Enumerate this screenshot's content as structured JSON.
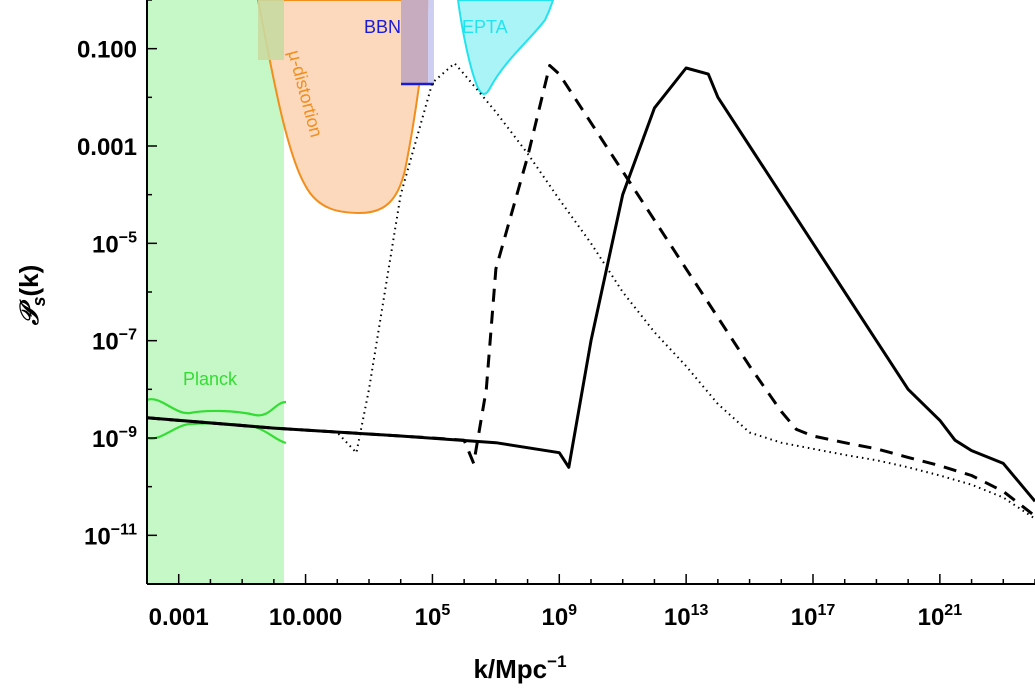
{
  "chart_data": {
    "type": "line",
    "xlabel": "k/Mpc",
    "xlabel_sup": "−1",
    "ylabel": "𝒫",
    "ylabel_sub": "s",
    "ylabel_suffix": "(k)",
    "x_scale": "log",
    "y_scale": "log",
    "xlim": [
      0.0001,
      1e+24
    ],
    "ylim": [
      1e-12,
      1
    ],
    "grid": false,
    "x_ticks": [
      {
        "value": 0.001,
        "base": "0.001",
        "sup": ""
      },
      {
        "value": 10,
        "base": "10.000",
        "sup": ""
      },
      {
        "value": 100000.0,
        "base": "10",
        "sup": "5"
      },
      {
        "value": 1000000000.0,
        "base": "10",
        "sup": "9"
      },
      {
        "value": 10000000000000.0,
        "base": "10",
        "sup": "13"
      },
      {
        "value": 1e+17,
        "base": "10",
        "sup": "17"
      },
      {
        "value": 1e+21,
        "base": "10",
        "sup": "21"
      }
    ],
    "y_ticks": [
      {
        "value": 0.1,
        "base": "0.100",
        "sup": ""
      },
      {
        "value": 0.001,
        "base": "0.001",
        "sup": ""
      },
      {
        "value": 1e-05,
        "base": "10",
        "sup": "−5"
      },
      {
        "value": 1e-07,
        "base": "10",
        "sup": "−7"
      },
      {
        "value": 1e-09,
        "base": "10",
        "sup": "−9"
      },
      {
        "value": 1e-11,
        "base": "10",
        "sup": "−11"
      }
    ],
    "regions": [
      {
        "label": "Planck",
        "color": "#33dd33",
        "fill": "#c6f7c6",
        "x_range": [
          0.0001,
          5
        ]
      },
      {
        "label": "μ-distortion",
        "color": "#f28e1c",
        "fill": "#fcd9bd",
        "x_range": [
          0.3,
          30000.0
        ],
        "y_range": [
          4e-05,
          1
        ]
      },
      {
        "label": "BBN",
        "color": "#1a1ad9",
        "fill": "#c9c9f2",
        "x_range": [
          10000.0,
          100000.0
        ],
        "y_min": 0.02
      },
      {
        "label": "EPTA",
        "color": "#22e3ee",
        "fill": "#aaf3f7",
        "x_range": [
          1000000.0,
          200000000.0
        ],
        "y_range": [
          0.01,
          1
        ]
      }
    ],
    "series": [
      {
        "style": "dotted",
        "points": [
          [
            0.0001,
            2.6e-09
          ],
          [
            1,
            1.6e-09
          ],
          [
            100,
            1.3e-09
          ],
          [
            400,
            5e-10
          ],
          [
            1000.0,
            1e-08
          ],
          [
            10000.0,
            0.0001
          ],
          [
            100000.0,
            0.02
          ],
          [
            500000.0,
            0.05
          ],
          [
            1000000.0,
            0.03
          ],
          [
            10000000.0,
            0.005
          ],
          [
            100000000.0,
            0.0007
          ],
          [
            1000000000.0,
            8e-05
          ],
          [
            10000000000.0,
            1e-05
          ],
          [
            100000000000.0,
            1e-06
          ],
          [
            1000000000000.0,
            1.5e-07
          ],
          [
            10000000000000.0,
            3e-08
          ],
          [
            100000000000000.0,
            5e-09
          ],
          [
            1000000000000000.0,
            1.3e-09
          ],
          [
            1e+16,
            8e-10
          ],
          [
            1e+17,
            6e-10
          ],
          [
            1e+18,
            4.5e-10
          ],
          [
            1e+19,
            3.5e-10
          ],
          [
            1e+20,
            2.5e-10
          ],
          [
            1e+21,
            1.7e-10
          ],
          [
            1e+22,
            1.1e-10
          ],
          [
            1e+23,
            6e-11
          ],
          [
            1e+24,
            2.2e-11
          ]
        ]
      },
      {
        "style": "dashed",
        "points": [
          [
            0.0001,
            2.6e-09
          ],
          [
            1,
            1.6e-09
          ],
          [
            10000.0,
            1.1e-09
          ],
          [
            100000.0,
            1e-09
          ],
          [
            1000000.0,
            9e-10
          ],
          [
            2000000.0,
            3e-10
          ],
          [
            5000000.0,
            1e-08
          ],
          [
            10000000.0,
            3e-06
          ],
          [
            100000000.0,
            0.0006
          ],
          [
            500000000.0,
            0.045
          ],
          [
            1000000000.0,
            0.03
          ],
          [
            10000000000.0,
            0.003
          ],
          [
            100000000000.0,
            0.0003
          ],
          [
            1000000000000.0,
            3e-05
          ],
          [
            10000000000000.0,
            3e-06
          ],
          [
            100000000000000.0,
            3e-07
          ],
          [
            1000000000000000.0,
            3e-08
          ],
          [
            1e+16,
            3.5e-09
          ],
          [
            3e+16,
            1.5e-09
          ],
          [
            1e+17,
            1.1e-09
          ],
          [
            1e+18,
            8e-10
          ],
          [
            1e+19,
            6e-10
          ],
          [
            1e+20,
            4e-10
          ],
          [
            1e+21,
            2.7e-10
          ],
          [
            1e+22,
            1.7e-10
          ],
          [
            1e+23,
            8e-11
          ],
          [
            1e+24,
            2.5e-11
          ]
        ]
      },
      {
        "style": "solid",
        "points": [
          [
            0.0001,
            2.6e-09
          ],
          [
            1,
            1.6e-09
          ],
          [
            10000.0,
            1.1e-09
          ],
          [
            10000000.0,
            8e-10
          ],
          [
            1000000000.0,
            5e-10
          ],
          [
            2000000000.0,
            2.5e-10
          ],
          [
            10000000000.0,
            1e-07
          ],
          [
            100000000000.0,
            0.0001
          ],
          [
            1000000000000.0,
            0.006
          ],
          [
            10000000000000.0,
            0.04
          ],
          [
            50000000000000.0,
            0.03
          ],
          [
            100000000000000.0,
            0.01
          ],
          [
            1000000000000000.0,
            0.001
          ],
          [
            1e+16,
            0.0001
          ],
          [
            1e+17,
            1e-05
          ],
          [
            1e+18,
            1e-06
          ],
          [
            1e+19,
            1e-07
          ],
          [
            1e+20,
            1e-08
          ],
          [
            1e+21,
            2.3e-09
          ],
          [
            3e+21,
            9e-10
          ],
          [
            1e+22,
            5.5e-10
          ],
          [
            1e+23,
            3e-10
          ],
          [
            1e+24,
            5e-11
          ]
        ]
      }
    ]
  }
}
